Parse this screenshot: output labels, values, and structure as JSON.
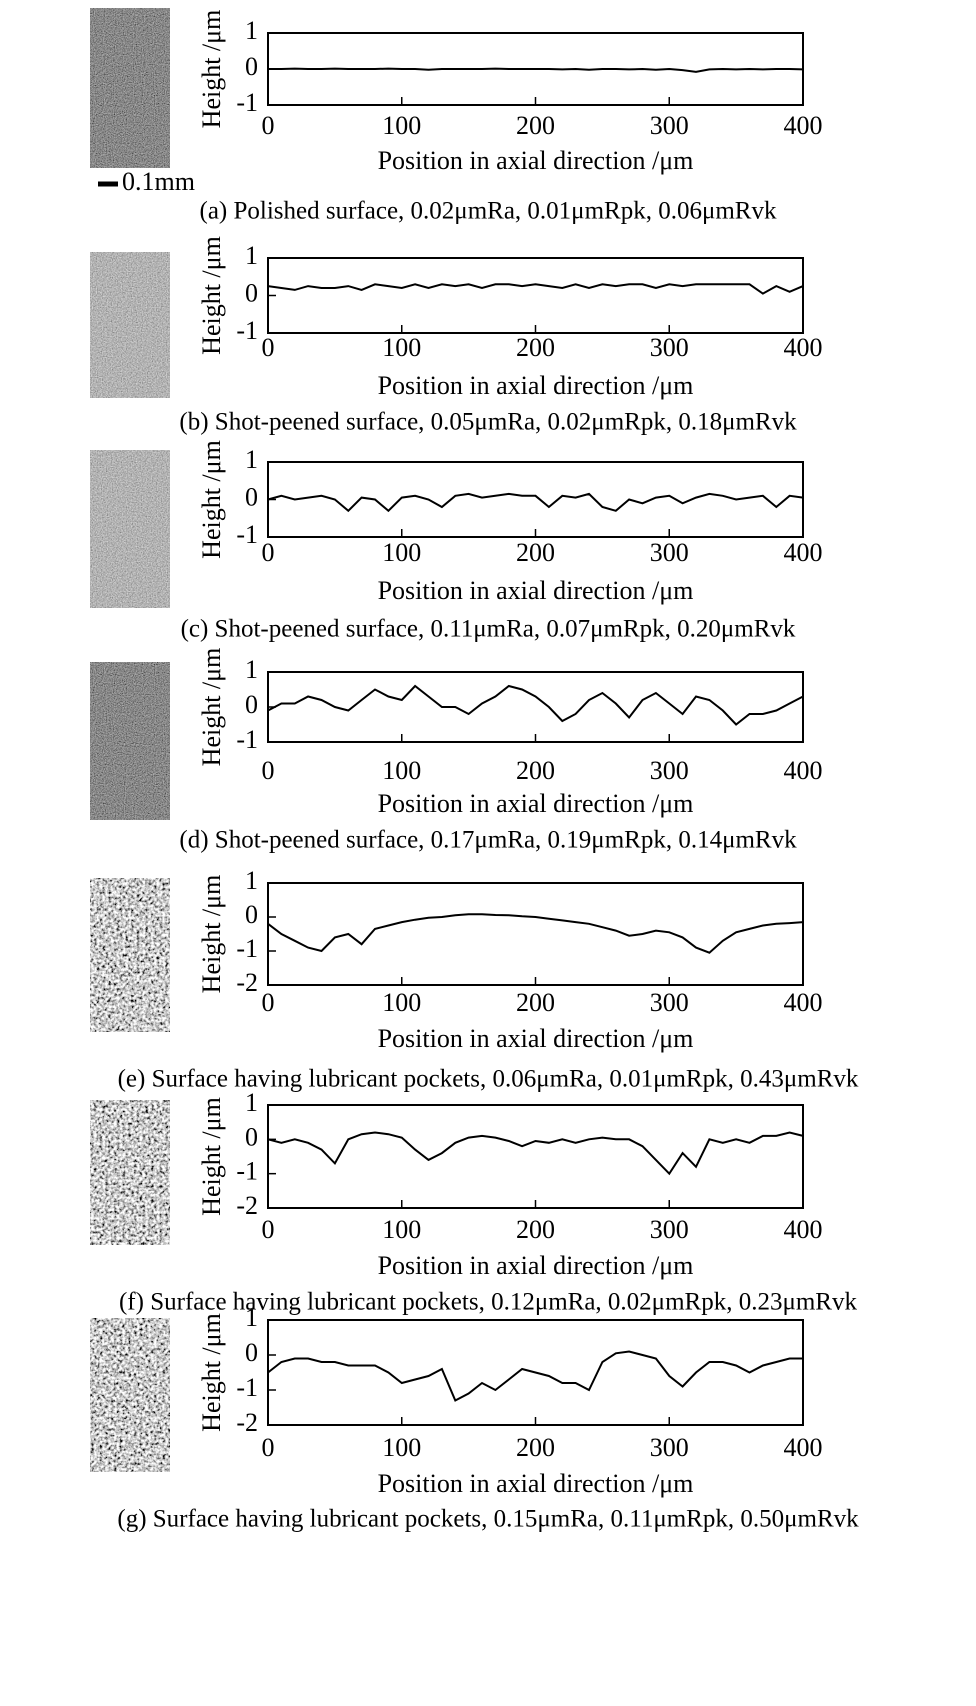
{
  "chart_data": [
    {
      "type": "line",
      "y_label": "Height /μm",
      "x_label": "Position in axial direction /μm",
      "caption": "(a) Polished surface, 0.02μmRa, 0.01μmRpk, 0.06μmRvk",
      "scale_bar": "0.1mm",
      "color": "#000000",
      "x": [
        0,
        10,
        20,
        30,
        40,
        50,
        60,
        70,
        80,
        90,
        100,
        110,
        120,
        130,
        140,
        150,
        160,
        170,
        180,
        190,
        200,
        210,
        220,
        230,
        240,
        250,
        260,
        270,
        280,
        290,
        300,
        310,
        320,
        330,
        340,
        350,
        360,
        370,
        380,
        390,
        400
      ],
      "values": [
        0,
        0,
        0.01,
        0,
        0,
        0.01,
        0,
        0,
        0,
        0.01,
        0,
        0,
        -0.02,
        0,
        0,
        0,
        0,
        0.01,
        0,
        0,
        0,
        0,
        -0.01,
        0,
        -0.02,
        0,
        0,
        -0.01,
        0,
        -0.02,
        0,
        -0.03,
        -0.08,
        -0.01,
        0,
        -0.01,
        0,
        -0.01,
        0,
        0,
        -0.01
      ],
      "xlim": [
        0,
        400
      ],
      "ylim": [
        -1,
        1
      ],
      "xticks": [
        0,
        100,
        200,
        300,
        400
      ],
      "yticks": [
        -1,
        0,
        1
      ]
    },
    {
      "type": "line",
      "y_label": "Height /μm",
      "x_label": "Position in axial direction /μm",
      "caption": "(b) Shot-peened surface, 0.05μmRa, 0.02μmRpk, 0.18μmRvk",
      "color": "#000000",
      "x": [
        0,
        10,
        20,
        30,
        40,
        50,
        60,
        70,
        80,
        90,
        100,
        110,
        120,
        130,
        140,
        150,
        160,
        170,
        180,
        190,
        200,
        210,
        220,
        230,
        240,
        250,
        260,
        270,
        280,
        290,
        300,
        310,
        320,
        330,
        340,
        350,
        360,
        370,
        380,
        390,
        400
      ],
      "values": [
        0.25,
        0.2,
        0.15,
        0.25,
        0.2,
        0.2,
        0.25,
        0.15,
        0.3,
        0.25,
        0.2,
        0.3,
        0.2,
        0.3,
        0.25,
        0.3,
        0.2,
        0.3,
        0.3,
        0.25,
        0.3,
        0.25,
        0.2,
        0.3,
        0.2,
        0.3,
        0.25,
        0.3,
        0.3,
        0.2,
        0.3,
        0.25,
        0.3,
        0.3,
        0.3,
        0.3,
        0.3,
        0.05,
        0.25,
        0.1,
        0.25
      ],
      "xlim": [
        0,
        400
      ],
      "ylim": [
        -1,
        1
      ],
      "xticks": [
        0,
        100,
        200,
        300,
        400
      ],
      "yticks": [
        -1,
        0,
        1
      ]
    },
    {
      "type": "line",
      "y_label": "Height /μm",
      "x_label": "Position in axial direction /μm",
      "caption": "(c) Shot-peened surface, 0.11μmRa, 0.07μmRpk, 0.20μmRvk",
      "color": "#000000",
      "x": [
        0,
        10,
        20,
        30,
        40,
        50,
        60,
        70,
        80,
        90,
        100,
        110,
        120,
        130,
        140,
        150,
        160,
        170,
        180,
        190,
        200,
        210,
        220,
        230,
        240,
        250,
        260,
        270,
        280,
        290,
        300,
        310,
        320,
        330,
        340,
        350,
        360,
        370,
        380,
        390,
        400
      ],
      "values": [
        0,
        0.1,
        0,
        0.05,
        0.1,
        0,
        -0.3,
        0.05,
        0,
        -0.3,
        0.05,
        0.1,
        0,
        -0.2,
        0.1,
        0.15,
        0.05,
        0.1,
        0.15,
        0.1,
        0.1,
        -0.2,
        0.1,
        0.05,
        0.15,
        -0.2,
        -0.3,
        0,
        -0.1,
        0.05,
        0.1,
        -0.1,
        0.05,
        0.15,
        0.1,
        0,
        0.05,
        0.1,
        -0.2,
        0.1,
        0.05
      ],
      "xlim": [
        0,
        400
      ],
      "ylim": [
        -1,
        1
      ],
      "xticks": [
        0,
        100,
        200,
        300,
        400
      ],
      "yticks": [
        -1,
        0,
        1
      ]
    },
    {
      "type": "line",
      "y_label": "Height /μm",
      "x_label": "Position in axial direction /μm",
      "caption": "(d) Shot-peened surface, 0.17μmRa, 0.19μmRpk, 0.14μmRvk",
      "color": "#000000",
      "x": [
        0,
        10,
        20,
        30,
        40,
        50,
        60,
        70,
        80,
        90,
        100,
        110,
        120,
        130,
        140,
        150,
        160,
        170,
        180,
        190,
        200,
        210,
        220,
        230,
        240,
        250,
        260,
        270,
        280,
        290,
        300,
        310,
        320,
        330,
        340,
        350,
        360,
        370,
        380,
        390,
        400
      ],
      "values": [
        -0.1,
        0.1,
        0.1,
        0.3,
        0.2,
        0,
        -0.1,
        0.2,
        0.5,
        0.3,
        0.2,
        0.6,
        0.3,
        0,
        0,
        -0.2,
        0.1,
        0.3,
        0.6,
        0.5,
        0.3,
        0,
        -0.4,
        -0.2,
        0.2,
        0.4,
        0.1,
        -0.3,
        0.2,
        0.4,
        0.1,
        -0.2,
        0.3,
        0.2,
        -0.1,
        -0.5,
        -0.2,
        -0.2,
        -0.1,
        0.1,
        0.3
      ],
      "xlim": [
        0,
        400
      ],
      "ylim": [
        -1,
        1
      ],
      "xticks": [
        0,
        100,
        200,
        300,
        400
      ],
      "yticks": [
        -1,
        0,
        1
      ]
    },
    {
      "type": "line",
      "y_label": "Height /μm",
      "x_label": "Position in axial direction /μm",
      "caption": "(e) Surface having lubricant pockets, 0.06μmRa, 0.01μmRpk, 0.43μmRvk",
      "color": "#000000",
      "x": [
        0,
        10,
        20,
        30,
        40,
        50,
        60,
        70,
        80,
        90,
        100,
        110,
        120,
        130,
        140,
        150,
        160,
        170,
        180,
        190,
        200,
        210,
        220,
        230,
        240,
        250,
        260,
        270,
        280,
        290,
        300,
        310,
        320,
        330,
        340,
        350,
        360,
        370,
        380,
        390,
        400
      ],
      "values": [
        -0.2,
        -0.5,
        -0.7,
        -0.9,
        -1.0,
        -0.6,
        -0.5,
        -0.8,
        -0.35,
        -0.25,
        -0.15,
        -0.08,
        -0.02,
        0,
        0.05,
        0.08,
        0.08,
        0.06,
        0.05,
        0.02,
        0,
        -0.05,
        -0.1,
        -0.15,
        -0.2,
        -0.3,
        -0.4,
        -0.55,
        -0.5,
        -0.4,
        -0.45,
        -0.6,
        -0.9,
        -1.05,
        -0.7,
        -0.45,
        -0.35,
        -0.25,
        -0.2,
        -0.18,
        -0.15
      ],
      "xlim": [
        0,
        400
      ],
      "ylim": [
        -2,
        1
      ],
      "xticks": [
        0,
        100,
        200,
        300,
        400
      ],
      "yticks": [
        -2,
        -1,
        0,
        1
      ]
    },
    {
      "type": "line",
      "y_label": "Height /μm",
      "x_label": "Position in axial direction /μm",
      "caption": "(f) Surface having lubricant pockets, 0.12μmRa, 0.02μmRpk, 0.23μmRvk",
      "color": "#000000",
      "x": [
        0,
        10,
        20,
        30,
        40,
        50,
        60,
        70,
        80,
        90,
        100,
        110,
        120,
        130,
        140,
        150,
        160,
        170,
        180,
        190,
        200,
        210,
        220,
        230,
        240,
        250,
        260,
        270,
        280,
        290,
        300,
        310,
        320,
        330,
        340,
        350,
        360,
        370,
        380,
        390,
        400
      ],
      "values": [
        0,
        -0.1,
        0,
        -0.1,
        -0.3,
        -0.7,
        0,
        0.15,
        0.2,
        0.15,
        0.05,
        -0.3,
        -0.6,
        -0.4,
        -0.1,
        0.05,
        0.1,
        0.05,
        -0.05,
        -0.2,
        -0.05,
        -0.1,
        0,
        -0.1,
        0,
        0.05,
        0,
        0,
        -0.2,
        -0.6,
        -1.0,
        -0.4,
        -0.8,
        0,
        -0.1,
        0,
        -0.1,
        0.1,
        0.1,
        0.2,
        0.1
      ],
      "xlim": [
        0,
        400
      ],
      "ylim": [
        -2,
        1
      ],
      "xticks": [
        0,
        100,
        200,
        300,
        400
      ],
      "yticks": [
        -2,
        -1,
        0,
        1
      ]
    },
    {
      "type": "line",
      "y_label": "Height /μm",
      "x_label": "Position in axial direction /μm",
      "caption": "(g) Surface having lubricant pockets, 0.15μmRa, 0.11μmRpk, 0.50μmRvk",
      "color": "#000000",
      "x": [
        0,
        10,
        20,
        30,
        40,
        50,
        60,
        70,
        80,
        90,
        100,
        110,
        120,
        130,
        140,
        150,
        160,
        170,
        180,
        190,
        200,
        210,
        220,
        230,
        240,
        250,
        260,
        270,
        280,
        290,
        300,
        310,
        320,
        330,
        340,
        350,
        360,
        370,
        380,
        390,
        400
      ],
      "values": [
        -0.5,
        -0.2,
        -0.1,
        -0.1,
        -0.2,
        -0.2,
        -0.3,
        -0.3,
        -0.3,
        -0.5,
        -0.8,
        -0.7,
        -0.6,
        -0.4,
        -1.3,
        -1.1,
        -0.8,
        -1.0,
        -0.7,
        -0.4,
        -0.5,
        -0.6,
        -0.8,
        -0.8,
        -1.0,
        -0.2,
        0.05,
        0.1,
        0,
        -0.1,
        -0.6,
        -0.9,
        -0.5,
        -0.2,
        -0.2,
        -0.3,
        -0.5,
        -0.3,
        -0.2,
        -0.1,
        -0.1
      ],
      "xlim": [
        0,
        400
      ],
      "ylim": [
        -2,
        1
      ],
      "xticks": [
        0,
        100,
        200,
        300,
        400
      ],
      "yticks": [
        -2,
        -1,
        0,
        1
      ]
    }
  ]
}
